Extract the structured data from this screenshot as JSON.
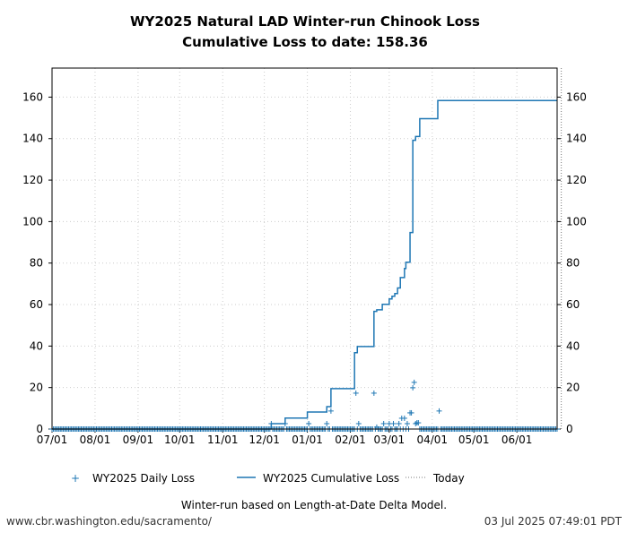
{
  "chart_data": {
    "type": "line",
    "title": "WY2025 Natural LAD Winter-run Chinook Loss",
    "subtitle": "Cumulative Loss to date: 158.36",
    "xlabel": "",
    "ylabel": "",
    "xlim": [
      "2024-07-01",
      "2025-06-30"
    ],
    "ylim": [
      0,
      174
    ],
    "x_tick_dates": [
      "2024-07-01",
      "2024-08-01",
      "2024-09-01",
      "2024-10-01",
      "2024-11-01",
      "2024-12-01",
      "2025-01-01",
      "2025-02-01",
      "2025-03-01",
      "2025-04-01",
      "2025-05-01",
      "2025-06-01"
    ],
    "x_tick_labels": [
      "07/01",
      "08/01",
      "09/01",
      "10/01",
      "11/01",
      "12/01",
      "01/01",
      "02/01",
      "03/01",
      "04/01",
      "05/01",
      "06/01"
    ],
    "y_ticks": [
      0,
      20,
      40,
      60,
      80,
      100,
      120,
      140,
      160
    ],
    "y_tick_labels": [
      "0",
      "20",
      "40",
      "60",
      "80",
      "100",
      "120",
      "140",
      "160"
    ],
    "grid": true,
    "secondary_y_axis": true,
    "legend_position": "bottom",
    "color": "#1f77b4",
    "today": "2025-07-03",
    "series": [
      {
        "name": "WY2025 Daily Loss",
        "type": "scatter",
        "marker": "+",
        "zero_value_date_range": [
          "2024-07-01",
          "2025-07-02"
        ],
        "points": [
          [
            "2024-12-06",
            2.6
          ],
          [
            "2024-12-16",
            2.6
          ],
          [
            "2025-01-02",
            2.6
          ],
          [
            "2025-01-15",
            2.6
          ],
          [
            "2025-01-18",
            8.7
          ],
          [
            "2025-02-05",
            17.3
          ],
          [
            "2025-02-07",
            2.6
          ],
          [
            "2025-02-18",
            17.3
          ],
          [
            "2025-02-20",
            0.9
          ],
          [
            "2025-02-25",
            2.6
          ],
          [
            "2025-03-01",
            2.6
          ],
          [
            "2025-03-04",
            2.6
          ],
          [
            "2025-03-08",
            2.6
          ],
          [
            "2025-03-10",
            5.2
          ],
          [
            "2025-03-12",
            5.2
          ],
          [
            "2025-03-14",
            2.6
          ],
          [
            "2025-03-16",
            7.8
          ],
          [
            "2025-03-17",
            7.8
          ],
          [
            "2025-03-18",
            19.9
          ],
          [
            "2025-03-19",
            22.5
          ],
          [
            "2025-03-20",
            2.6
          ],
          [
            "2025-03-21",
            3.0
          ],
          [
            "2025-03-22",
            3.0
          ],
          [
            "2025-04-06",
            8.7
          ]
        ]
      },
      {
        "name": "WY2025 Cumulative Loss",
        "type": "step",
        "points": [
          [
            "2024-07-01",
            0
          ],
          [
            "2024-12-06",
            2.6
          ],
          [
            "2024-12-16",
            5.3
          ],
          [
            "2025-01-01",
            8.2
          ],
          [
            "2025-01-15",
            10.8
          ],
          [
            "2025-01-18",
            19.5
          ],
          [
            "2025-02-04",
            36.8
          ],
          [
            "2025-02-06",
            39.8
          ],
          [
            "2025-02-18",
            56.7
          ],
          [
            "2025-02-20",
            57.5
          ],
          [
            "2025-02-24",
            60.1
          ],
          [
            "2025-03-01",
            62.7
          ],
          [
            "2025-03-03",
            64.0
          ],
          [
            "2025-03-05",
            65.3
          ],
          [
            "2025-03-07",
            68.0
          ],
          [
            "2025-03-09",
            73.0
          ],
          [
            "2025-03-12",
            77.4
          ],
          [
            "2025-03-13",
            80.4
          ],
          [
            "2025-03-16",
            94.7
          ],
          [
            "2025-03-18",
            139.2
          ],
          [
            "2025-03-20",
            141.0
          ],
          [
            "2025-03-23",
            149.6
          ],
          [
            "2025-04-05",
            158.36
          ],
          [
            "2025-06-30",
            158.36
          ]
        ]
      },
      {
        "name": "Today",
        "type": "vline",
        "style": "dotted"
      }
    ],
    "caption": "Winter-run based on Length-at-Date Delta Model."
  },
  "footer": {
    "url": "www.cbr.washington.edu/sacramento/",
    "timestamp": "03 Jul 2025 07:49:01 PDT"
  }
}
